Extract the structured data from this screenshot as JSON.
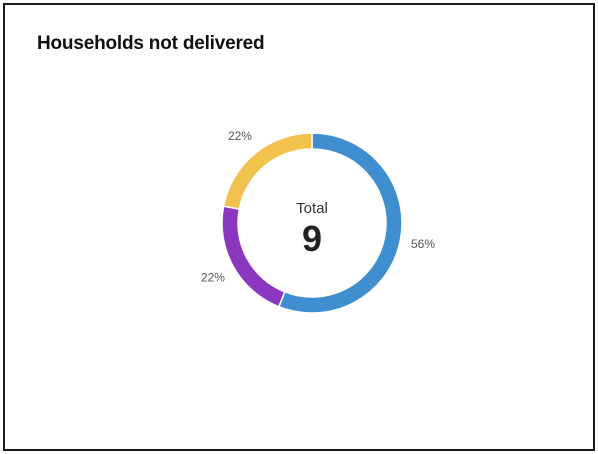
{
  "card": {
    "title": "Households not delivered"
  },
  "chart_data": {
    "type": "pie",
    "variant": "donut",
    "center_label": "Total",
    "center_value": "9",
    "slices": [
      {
        "value": 56,
        "label": "56%",
        "color": "#3e8ed0"
      },
      {
        "value": 22,
        "label": "22%",
        "color": "#8b37c0"
      },
      {
        "value": 22,
        "label": "22%",
        "color": "#f2c24e"
      }
    ],
    "start_angle_deg": 90,
    "direction": "clockwise",
    "legend": "none"
  }
}
